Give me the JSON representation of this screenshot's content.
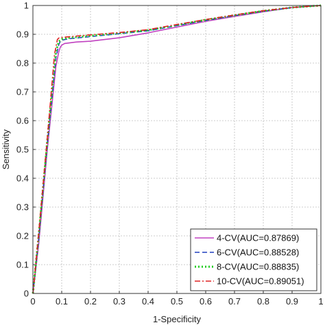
{
  "chart_data": {
    "type": "line",
    "title": "",
    "xlabel": "1-Specificity",
    "ylabel": "Sensitivity",
    "xlim": [
      0,
      1
    ],
    "ylim": [
      0,
      1
    ],
    "xticks": [
      "0",
      "0.1",
      "0.2",
      "0.3",
      "0.4",
      "0.5",
      "0.6",
      "0.7",
      "0.8",
      "0.9",
      "1"
    ],
    "yticks": [
      "0",
      "0.1",
      "0.2",
      "0.3",
      "0.4",
      "0.5",
      "0.6",
      "0.7",
      "0.8",
      "0.9",
      "1"
    ],
    "grid": true,
    "legend_position": "bottom-right",
    "series": [
      {
        "name": "4-CV(AUC=0.87869)",
        "color": "#c040c0",
        "style": "solid",
        "x": [
          0,
          0.02,
          0.05,
          0.08,
          0.09,
          0.095,
          0.1,
          0.11,
          0.15,
          0.2,
          0.3,
          0.4,
          0.5,
          0.6,
          0.7,
          0.8,
          0.9,
          1
        ],
        "y": [
          0,
          0.17,
          0.5,
          0.79,
          0.84,
          0.855,
          0.862,
          0.868,
          0.873,
          0.876,
          0.888,
          0.905,
          0.925,
          0.945,
          0.962,
          0.978,
          0.993,
          1
        ]
      },
      {
        "name": "6-CV(AUC=0.88528)",
        "color": "#1f3fbf",
        "style": "dashed",
        "x": [
          0,
          0.02,
          0.05,
          0.08,
          0.09,
          0.095,
          0.1,
          0.12,
          0.2,
          0.3,
          0.4,
          0.5,
          0.6,
          0.7,
          0.8,
          0.9,
          1
        ],
        "y": [
          0,
          0.19,
          0.52,
          0.82,
          0.865,
          0.875,
          0.879,
          0.884,
          0.892,
          0.902,
          0.912,
          0.93,
          0.948,
          0.965,
          0.98,
          0.993,
          1
        ]
      },
      {
        "name": "8-CV(AUC=0.88835)",
        "color": "#22cc22",
        "style": "dotted",
        "x": [
          0,
          0.02,
          0.05,
          0.08,
          0.09,
          0.1,
          0.12,
          0.2,
          0.3,
          0.4,
          0.5,
          0.6,
          0.7,
          0.8,
          0.9,
          1
        ],
        "y": [
          0,
          0.2,
          0.53,
          0.84,
          0.875,
          0.883,
          0.887,
          0.895,
          0.904,
          0.914,
          0.932,
          0.95,
          0.966,
          0.981,
          0.993,
          1
        ]
      },
      {
        "name": "10-CV(AUC=0.89051)",
        "color": "#dd2222",
        "style": "dashdot",
        "x": [
          0,
          0.02,
          0.05,
          0.075,
          0.085,
          0.09,
          0.1,
          0.12,
          0.2,
          0.3,
          0.4,
          0.5,
          0.6,
          0.7,
          0.8,
          0.9,
          1
        ],
        "y": [
          0,
          0.21,
          0.54,
          0.83,
          0.882,
          0.887,
          0.889,
          0.891,
          0.898,
          0.906,
          0.916,
          0.934,
          0.951,
          0.967,
          0.982,
          0.993,
          1
        ]
      }
    ]
  }
}
